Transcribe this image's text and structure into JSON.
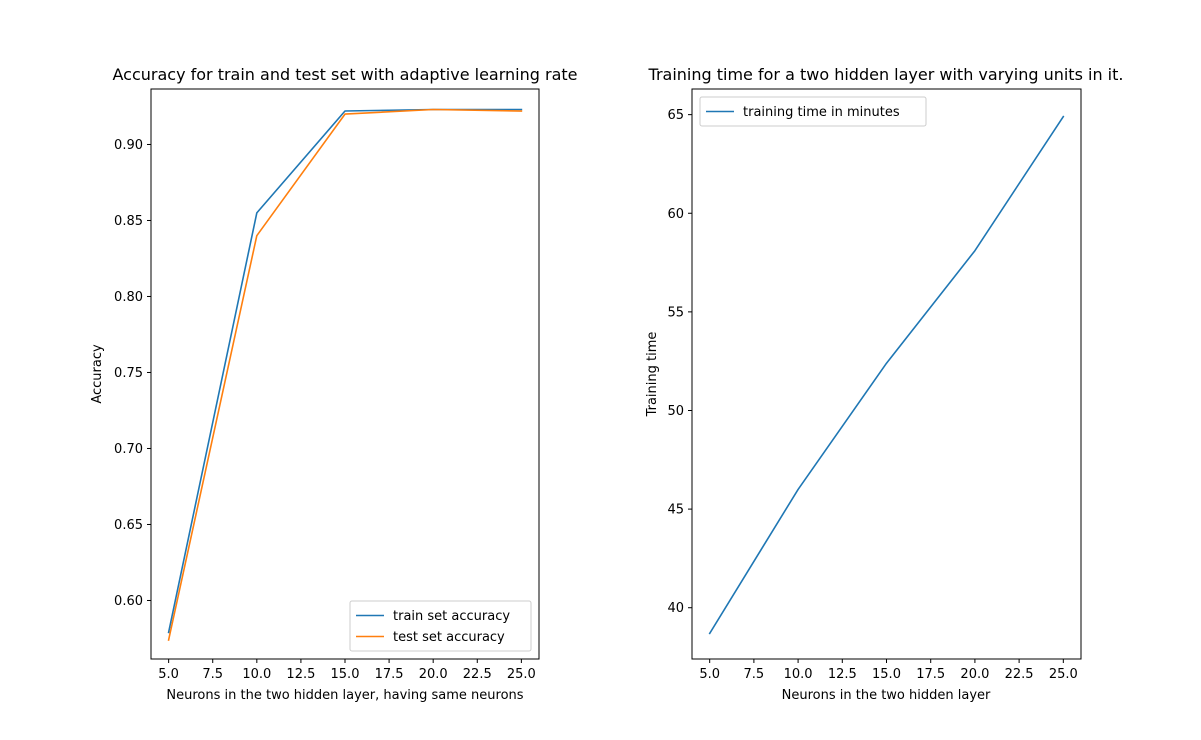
{
  "chart_data": [
    {
      "type": "line",
      "title": "Accuracy for train and test set with adaptive learning rate",
      "xlabel": "Neurons in the two hidden layer, having same neurons",
      "ylabel": "Accuracy",
      "xlim": [
        4.0,
        26.0
      ],
      "ylim": [
        0.5615,
        0.9365
      ],
      "xticks": [
        5.0,
        7.5,
        10.0,
        12.5,
        15.0,
        17.5,
        20.0,
        22.5,
        25.0
      ],
      "xtick_labels": [
        "5.0",
        "7.5",
        "10.0",
        "12.5",
        "15.0",
        "17.5",
        "20.0",
        "22.5",
        "25.0"
      ],
      "yticks": [
        0.6,
        0.65,
        0.7,
        0.75,
        0.8,
        0.85,
        0.9
      ],
      "ytick_labels": [
        "0.60",
        "0.65",
        "0.70",
        "0.75",
        "0.80",
        "0.85",
        "0.90"
      ],
      "x": [
        5,
        10,
        15,
        20,
        25
      ],
      "series": [
        {
          "name": "train set accuracy",
          "color": "#1f77b4",
          "values": [
            0.579,
            0.855,
            0.922,
            0.923,
            0.923
          ]
        },
        {
          "name": "test set accuracy",
          "color": "#ff7f0e",
          "values": [
            0.574,
            0.84,
            0.92,
            0.923,
            0.922
          ]
        }
      ],
      "legend": "lower-right",
      "grid": false
    },
    {
      "type": "line",
      "title": "Training time for a two hidden layer with varying units in it.",
      "xlabel": "Neurons in the two hidden layer",
      "ylabel": "Training time",
      "xlim": [
        4.0,
        26.0
      ],
      "ylim": [
        37.4,
        66.3
      ],
      "xticks": [
        5.0,
        7.5,
        10.0,
        12.5,
        15.0,
        17.5,
        20.0,
        22.5,
        25.0
      ],
      "xtick_labels": [
        "5.0",
        "7.5",
        "10.0",
        "12.5",
        "15.0",
        "17.5",
        "20.0",
        "22.5",
        "25.0"
      ],
      "yticks": [
        40,
        45,
        50,
        55,
        60,
        65
      ],
      "ytick_labels": [
        "40",
        "45",
        "50",
        "55",
        "60",
        "65"
      ],
      "x": [
        5,
        10,
        15,
        20,
        25
      ],
      "series": [
        {
          "name": "training time in minutes",
          "color": "#1f77b4",
          "values": [
            38.7,
            46.0,
            52.4,
            58.1,
            64.9
          ]
        }
      ],
      "legend": "upper-left",
      "grid": false
    }
  ]
}
